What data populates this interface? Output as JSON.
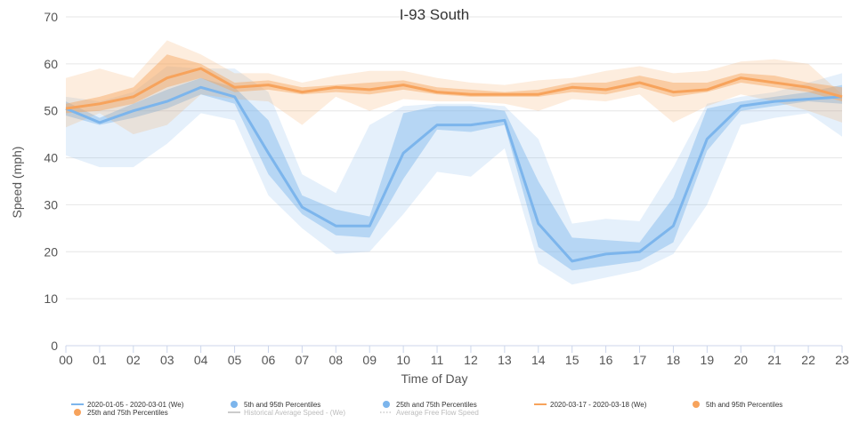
{
  "chart_data": {
    "type": "area",
    "title": "I-93 South",
    "xlabel": "Time of Day",
    "ylabel": "Speed (mph)",
    "ylim": [
      0,
      70
    ],
    "yticks": [
      0,
      10,
      20,
      30,
      40,
      50,
      60,
      70
    ],
    "grid": true,
    "categories": [
      "00",
      "01",
      "02",
      "03",
      "04",
      "05",
      "06",
      "07",
      "08",
      "09",
      "10",
      "11",
      "12",
      "13",
      "14",
      "15",
      "16",
      "17",
      "18",
      "19",
      "20",
      "21",
      "22",
      "23"
    ],
    "series": [
      {
        "name": "2020-01-05 - 2020-03-01 (We)",
        "color": "#7cb5ec",
        "median": [
          50.5,
          47.5,
          50,
          52,
          55,
          53,
          41,
          29.5,
          25.5,
          25.5,
          41,
          47,
          47,
          48,
          26,
          18,
          19.5,
          20,
          25.5,
          44,
          51,
          52,
          52.5,
          53
        ],
        "p25": [
          49,
          47,
          48.5,
          50.5,
          53.5,
          51.5,
          36.5,
          28,
          23.5,
          23,
          35.5,
          46,
          45.5,
          47,
          21,
          16,
          17,
          18,
          22,
          41.5,
          50,
          51,
          52,
          51.5
        ],
        "p75": [
          52,
          48.5,
          51.5,
          54.5,
          57,
          55,
          48,
          32,
          29,
          27.5,
          49.5,
          51,
          51,
          50,
          35,
          23,
          22.5,
          22,
          31.5,
          50.5,
          52,
          53,
          54,
          55.5
        ],
        "p5": [
          40.5,
          38,
          38,
          43,
          49.5,
          48,
          32,
          25,
          19.5,
          20,
          28,
          37,
          36,
          42,
          17.5,
          13,
          14.5,
          16,
          19.5,
          30,
          47,
          48.5,
          49.5,
          44.5
        ],
        "p95": [
          53,
          52,
          54,
          59.5,
          59,
          59,
          54,
          36.5,
          32.5,
          47,
          51,
          51.5,
          51.5,
          51,
          44,
          26,
          27,
          26.5,
          38,
          51.5,
          53,
          54,
          56,
          58
        ]
      },
      {
        "name": "2020-03-17 - 2020-03-18 (We)",
        "color": "#f7a35c",
        "median": [
          50.5,
          51.5,
          53,
          57,
          59,
          55,
          55.5,
          54,
          55,
          54.5,
          55.5,
          54,
          53.5,
          53.5,
          53.5,
          55,
          54.5,
          56,
          54,
          54.5,
          57,
          56,
          55,
          53
        ],
        "p25": [
          49.5,
          50,
          51.5,
          55,
          57,
          54,
          54.5,
          53.5,
          54,
          53.5,
          54.5,
          53.5,
          53,
          53,
          53,
          54,
          53.5,
          55,
          53,
          54,
          56,
          55,
          54,
          52
        ],
        "p75": [
          51.5,
          53,
          55,
          62,
          60,
          56,
          56.5,
          55,
          55.5,
          56,
          56.5,
          55,
          54.5,
          54,
          54.5,
          56,
          56,
          57.5,
          56,
          56,
          58,
          57.5,
          56,
          55
        ],
        "p5": [
          46.5,
          49.5,
          45,
          47,
          53.5,
          52.5,
          52,
          47,
          53,
          50,
          52.5,
          52,
          52,
          51.5,
          50,
          52.5,
          52,
          53.5,
          47.5,
          51,
          53.5,
          52,
          50,
          47.5
        ],
        "p95": [
          57,
          59,
          57,
          65,
          62,
          58,
          58,
          56,
          57.5,
          58.5,
          58.5,
          57,
          56,
          55.5,
          56.5,
          57,
          58.5,
          59.5,
          58,
          58.5,
          60.5,
          61,
          60,
          53.5
        ]
      }
    ],
    "legend": {
      "placement": "bottom",
      "items": [
        {
          "label": "2020-01-05 - 2020-03-01 (We)",
          "symbol": "line",
          "color": "#7cb5ec"
        },
        {
          "label": "5th and 95th Percentiles",
          "symbol": "dot",
          "color": "#7cb5ec"
        },
        {
          "label": "25th and 75th Percentiles",
          "symbol": "dot",
          "color": "#7cb5ec"
        },
        {
          "label": "2020-03-17 - 2020-03-18 (We)",
          "symbol": "line",
          "color": "#f7a35c"
        },
        {
          "label": "5th and 95th Percentiles",
          "symbol": "dot",
          "color": "#f7a35c"
        },
        {
          "label": "25th and 75th Percentiles",
          "symbol": "dot",
          "color": "#f7a35c"
        },
        {
          "label": "Historical Average Speed - (We)",
          "symbol": "line",
          "color": "#cccccc",
          "disabled": true
        },
        {
          "label": "Average Free Flow Speed",
          "symbol": "dotted",
          "color": "#cccccc",
          "disabled": true
        }
      ]
    }
  }
}
